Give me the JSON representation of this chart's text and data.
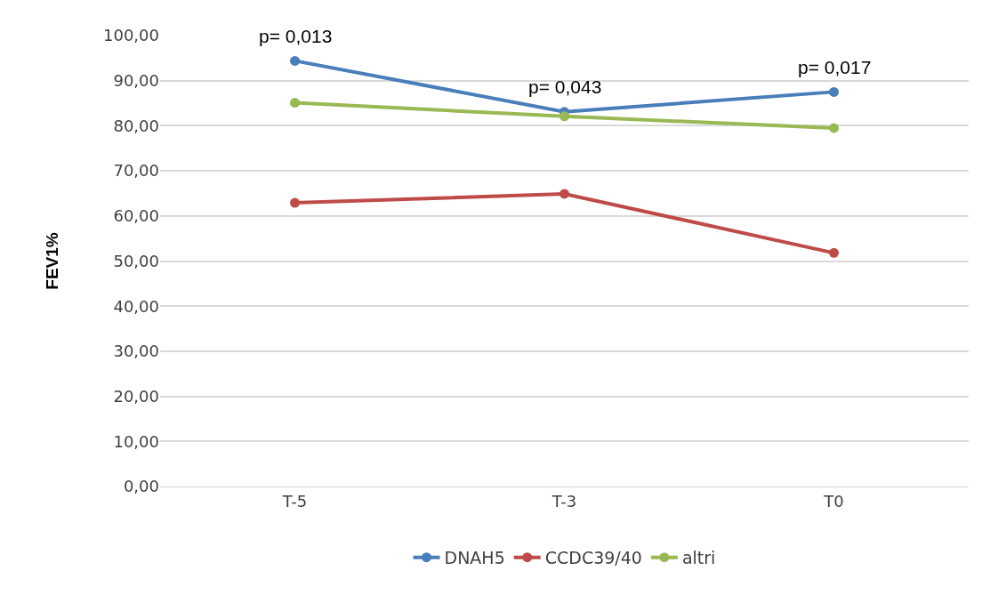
{
  "chart_data": {
    "type": "line",
    "ylabel": "FEV1%",
    "categories": [
      "T-5",
      "T-3",
      "T0"
    ],
    "series": [
      {
        "name": "DNAH5",
        "color": "#4a7ebb",
        "values": [
          94.4,
          83.1,
          87.5
        ]
      },
      {
        "name": "CCDC39/40",
        "color": "#be4b48",
        "values": [
          62.9,
          64.9,
          51.8
        ]
      },
      {
        "name": "altri",
        "color": "#98b954",
        "values": [
          85.1,
          82.1,
          79.5
        ]
      }
    ],
    "ylim": [
      0,
      100
    ],
    "yticks": [
      {
        "value": 0,
        "label": "0,00"
      },
      {
        "value": 10,
        "label": "10,00"
      },
      {
        "value": 20,
        "label": "20,00"
      },
      {
        "value": 30,
        "label": "30,00"
      },
      {
        "value": 40,
        "label": "40,00"
      },
      {
        "value": 50,
        "label": "50,00"
      },
      {
        "value": 60,
        "label": "60,00"
      },
      {
        "value": 70,
        "label": "70,00"
      },
      {
        "value": 80,
        "label": "80,00"
      },
      {
        "value": 90,
        "label": "90,00"
      },
      {
        "value": 100,
        "label": "100,00"
      }
    ],
    "annotations": [
      {
        "text": "p= 0,013",
        "x": "T-5",
        "y": 94.4
      },
      {
        "text": "p= 0,043",
        "x": "T-3",
        "y": 83.1
      },
      {
        "text": "p= 0,017",
        "x": "T0",
        "y": 87.5
      }
    ],
    "grid": "y",
    "legend": "bottom",
    "marker": "circle",
    "line_style": "solid"
  }
}
